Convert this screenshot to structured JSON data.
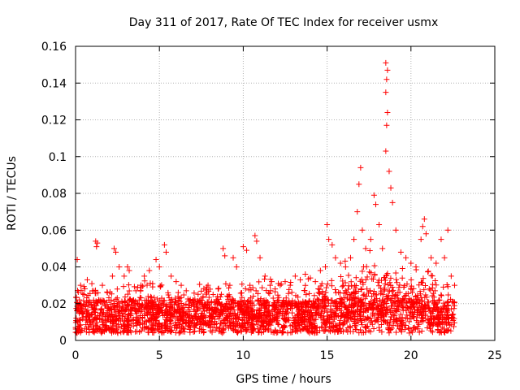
{
  "chart_data": {
    "type": "scatter",
    "title": "Day 311 of 2017, Rate Of TEC Index for receiver usmx",
    "xlabel": "GPS time / hours",
    "ylabel": "ROTI / TECUs",
    "xlim": [
      0,
      25
    ],
    "ylim": [
      0,
      0.16
    ],
    "xticks": [
      0,
      5,
      10,
      15,
      20,
      25
    ],
    "xtick_labels": [
      "0",
      "5",
      "10",
      "15",
      "20",
      "25"
    ],
    "yticks": [
      0,
      0.02,
      0.04,
      0.06,
      0.08,
      0.1,
      0.12,
      0.14,
      0.16
    ],
    "ytick_labels": [
      "0",
      "0.02",
      "0.04",
      "0.06",
      "0.08",
      "0.1",
      "0.12",
      "0.14",
      "0.16"
    ],
    "grid": true,
    "marker": "+",
    "marker_color": "#ff0000",
    "x_range_of_data": [
      0,
      22.6
    ],
    "series": [
      {
        "points": [
          [
            0.1,
            0.044
          ],
          [
            0.3,
            0.03
          ],
          [
            0.5,
            0.025
          ],
          [
            0.7,
            0.033
          ],
          [
            1.0,
            0.027
          ],
          [
            1.2,
            0.054
          ],
          [
            1.25,
            0.051
          ],
          [
            1.3,
            0.053
          ],
          [
            1.6,
            0.03
          ],
          [
            1.9,
            0.026
          ],
          [
            2.2,
            0.035
          ],
          [
            2.3,
            0.05
          ],
          [
            2.4,
            0.048
          ],
          [
            2.6,
            0.04
          ],
          [
            2.9,
            0.035
          ],
          [
            3.1,
            0.04
          ],
          [
            3.2,
            0.038
          ],
          [
            3.6,
            0.027
          ],
          [
            3.9,
            0.03
          ],
          [
            4.1,
            0.035
          ],
          [
            4.4,
            0.038
          ],
          [
            4.8,
            0.044
          ],
          [
            5.0,
            0.04
          ],
          [
            5.3,
            0.052
          ],
          [
            5.4,
            0.048
          ],
          [
            5.7,
            0.035
          ],
          [
            6.0,
            0.032
          ],
          [
            6.3,
            0.03
          ],
          [
            6.6,
            0.027
          ],
          [
            7.0,
            0.022
          ],
          [
            7.3,
            0.021
          ],
          [
            7.6,
            0.024
          ],
          [
            7.9,
            0.03
          ],
          [
            8.2,
            0.025
          ],
          [
            8.5,
            0.028
          ],
          [
            8.8,
            0.05
          ],
          [
            8.9,
            0.046
          ],
          [
            9.2,
            0.03
          ],
          [
            9.4,
            0.045
          ],
          [
            9.6,
            0.04
          ],
          [
            10.0,
            0.051
          ],
          [
            10.2,
            0.049
          ],
          [
            10.4,
            0.03
          ],
          [
            10.7,
            0.057
          ],
          [
            10.8,
            0.054
          ],
          [
            11.0,
            0.045
          ],
          [
            11.3,
            0.035
          ],
          [
            11.6,
            0.03
          ],
          [
            11.9,
            0.028
          ],
          [
            12.2,
            0.03
          ],
          [
            12.5,
            0.032
          ],
          [
            12.8,
            0.03
          ],
          [
            13.1,
            0.035
          ],
          [
            13.4,
            0.033
          ],
          [
            13.7,
            0.036
          ],
          [
            14.0,
            0.034
          ],
          [
            14.3,
            0.032
          ],
          [
            14.6,
            0.038
          ],
          [
            14.9,
            0.04
          ],
          [
            15.0,
            0.063
          ],
          [
            15.1,
            0.055
          ],
          [
            15.3,
            0.052
          ],
          [
            15.5,
            0.045
          ],
          [
            15.8,
            0.042
          ],
          [
            16.1,
            0.04
          ],
          [
            16.4,
            0.045
          ],
          [
            16.6,
            0.055
          ],
          [
            16.8,
            0.07
          ],
          [
            16.9,
            0.085
          ],
          [
            17.0,
            0.094
          ],
          [
            17.1,
            0.06
          ],
          [
            17.3,
            0.05
          ],
          [
            17.6,
            0.055
          ],
          [
            17.8,
            0.079
          ],
          [
            17.9,
            0.074
          ],
          [
            18.1,
            0.063
          ],
          [
            18.3,
            0.05
          ],
          [
            18.5,
            0.103
          ],
          [
            18.55,
            0.117
          ],
          [
            18.6,
            0.124
          ],
          [
            18.5,
            0.135
          ],
          [
            18.55,
            0.142
          ],
          [
            18.6,
            0.147
          ],
          [
            18.5,
            0.151
          ],
          [
            18.7,
            0.092
          ],
          [
            18.8,
            0.083
          ],
          [
            18.9,
            0.075
          ],
          [
            19.1,
            0.06
          ],
          [
            19.4,
            0.048
          ],
          [
            19.7,
            0.045
          ],
          [
            20.0,
            0.042
          ],
          [
            20.3,
            0.04
          ],
          [
            20.6,
            0.055
          ],
          [
            20.7,
            0.062
          ],
          [
            20.8,
            0.066
          ],
          [
            20.9,
            0.058
          ],
          [
            21.2,
            0.045
          ],
          [
            21.5,
            0.042
          ],
          [
            21.8,
            0.055
          ],
          [
            22.0,
            0.045
          ],
          [
            22.2,
            0.06
          ],
          [
            22.4,
            0.035
          ],
          [
            22.6,
            0.03
          ]
        ]
      }
    ]
  }
}
